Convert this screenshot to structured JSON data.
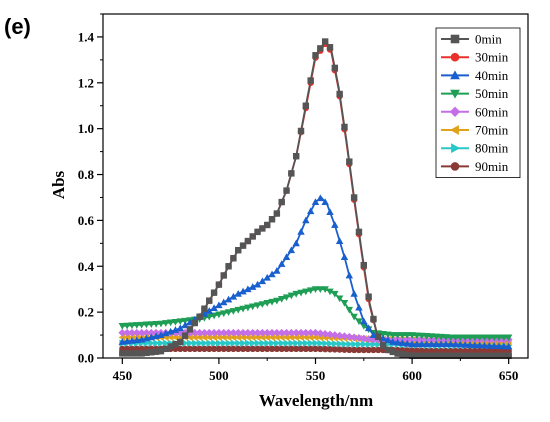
{
  "panel_label": "(e)",
  "chart_data": {
    "type": "line",
    "title": "",
    "xlabel": "Wavelength/nm",
    "ylabel": "Abs",
    "xlim": [
      440,
      660
    ],
    "ylim": [
      0,
      1.5
    ],
    "xticks": [
      450,
      500,
      550,
      600,
      650
    ],
    "yticks": [
      0.0,
      0.2,
      0.4,
      0.6,
      0.8,
      1.0,
      1.2,
      1.4
    ],
    "grid": false,
    "legend_position": "top-right",
    "series": [
      {
        "name": "0min",
        "color": "#555555",
        "marker": "square",
        "points": [
          [
            450,
            0.02
          ],
          [
            460,
            0.02
          ],
          [
            470,
            0.03
          ],
          [
            480,
            0.07
          ],
          [
            490,
            0.18
          ],
          [
            500,
            0.32
          ],
          [
            505,
            0.4
          ],
          [
            510,
            0.47
          ],
          [
            515,
            0.51
          ],
          [
            520,
            0.55
          ],
          [
            525,
            0.58
          ],
          [
            530,
            0.63
          ],
          [
            535,
            0.73
          ],
          [
            540,
            0.88
          ],
          [
            545,
            1.1
          ],
          [
            550,
            1.32
          ],
          [
            555,
            1.38
          ],
          [
            558,
            1.35
          ],
          [
            562,
            1.18
          ],
          [
            566,
            0.95
          ],
          [
            570,
            0.7
          ],
          [
            574,
            0.46
          ],
          [
            578,
            0.24
          ],
          [
            582,
            0.1
          ],
          [
            586,
            0.04
          ],
          [
            592,
            0.02
          ],
          [
            600,
            0.01
          ],
          [
            620,
            0.01
          ],
          [
            650,
            0.01
          ]
        ]
      },
      {
        "name": "30min",
        "color": "#e8312a",
        "marker": "circle",
        "points": [
          [
            450,
            0.02
          ],
          [
            460,
            0.02
          ],
          [
            470,
            0.03
          ],
          [
            480,
            0.07
          ],
          [
            490,
            0.18
          ],
          [
            500,
            0.32
          ],
          [
            505,
            0.4
          ],
          [
            510,
            0.47
          ],
          [
            515,
            0.51
          ],
          [
            520,
            0.55
          ],
          [
            525,
            0.58
          ],
          [
            530,
            0.63
          ],
          [
            535,
            0.73
          ],
          [
            540,
            0.88
          ],
          [
            545,
            1.09
          ],
          [
            550,
            1.31
          ],
          [
            555,
            1.37
          ],
          [
            558,
            1.34
          ],
          [
            562,
            1.17
          ],
          [
            566,
            0.94
          ],
          [
            570,
            0.69
          ],
          [
            574,
            0.45
          ],
          [
            578,
            0.23
          ],
          [
            582,
            0.1
          ],
          [
            586,
            0.04
          ],
          [
            592,
            0.02
          ],
          [
            600,
            0.01
          ],
          [
            620,
            0.01
          ],
          [
            650,
            0.01
          ]
        ]
      },
      {
        "name": "40min",
        "color": "#1a5fce",
        "marker": "triangle-up",
        "points": [
          [
            450,
            0.07
          ],
          [
            460,
            0.08
          ],
          [
            470,
            0.1
          ],
          [
            480,
            0.13
          ],
          [
            490,
            0.18
          ],
          [
            500,
            0.23
          ],
          [
            510,
            0.28
          ],
          [
            520,
            0.32
          ],
          [
            530,
            0.38
          ],
          [
            540,
            0.5
          ],
          [
            545,
            0.6
          ],
          [
            550,
            0.68
          ],
          [
            553,
            0.7
          ],
          [
            556,
            0.67
          ],
          [
            560,
            0.58
          ],
          [
            565,
            0.44
          ],
          [
            570,
            0.28
          ],
          [
            575,
            0.16
          ],
          [
            580,
            0.1
          ],
          [
            590,
            0.07
          ],
          [
            600,
            0.06
          ],
          [
            620,
            0.06
          ],
          [
            650,
            0.05
          ]
        ]
      },
      {
        "name": "50min",
        "color": "#1f9e55",
        "marker": "triangle-down",
        "points": [
          [
            450,
            0.14
          ],
          [
            460,
            0.145
          ],
          [
            470,
            0.15
          ],
          [
            480,
            0.16
          ],
          [
            490,
            0.17
          ],
          [
            500,
            0.19
          ],
          [
            510,
            0.21
          ],
          [
            520,
            0.23
          ],
          [
            530,
            0.25
          ],
          [
            540,
            0.28
          ],
          [
            550,
            0.3
          ],
          [
            555,
            0.3
          ],
          [
            560,
            0.28
          ],
          [
            565,
            0.24
          ],
          [
            570,
            0.18
          ],
          [
            575,
            0.14
          ],
          [
            580,
            0.11
          ],
          [
            590,
            0.1
          ],
          [
            600,
            0.1
          ],
          [
            620,
            0.09
          ],
          [
            650,
            0.09
          ]
        ]
      },
      {
        "name": "60min",
        "color": "#c46ee8",
        "marker": "diamond",
        "points": [
          [
            450,
            0.11
          ],
          [
            470,
            0.11
          ],
          [
            490,
            0.11
          ],
          [
            510,
            0.11
          ],
          [
            530,
            0.11
          ],
          [
            550,
            0.11
          ],
          [
            560,
            0.1
          ],
          [
            570,
            0.09
          ],
          [
            580,
            0.08
          ],
          [
            600,
            0.08
          ],
          [
            620,
            0.08
          ],
          [
            650,
            0.08
          ]
        ]
      },
      {
        "name": "70min",
        "color": "#e0a21b",
        "marker": "triangle-left",
        "points": [
          [
            450,
            0.09
          ],
          [
            470,
            0.09
          ],
          [
            490,
            0.09
          ],
          [
            510,
            0.09
          ],
          [
            530,
            0.09
          ],
          [
            550,
            0.09
          ],
          [
            570,
            0.085
          ],
          [
            590,
            0.08
          ],
          [
            610,
            0.075
          ],
          [
            630,
            0.07
          ],
          [
            650,
            0.07
          ]
        ]
      },
      {
        "name": "80min",
        "color": "#28c8c8",
        "marker": "triangle-right",
        "points": [
          [
            450,
            0.065
          ],
          [
            470,
            0.065
          ],
          [
            490,
            0.065
          ],
          [
            510,
            0.065
          ],
          [
            530,
            0.065
          ],
          [
            550,
            0.065
          ],
          [
            570,
            0.06
          ],
          [
            590,
            0.06
          ],
          [
            610,
            0.055
          ],
          [
            630,
            0.055
          ],
          [
            650,
            0.055
          ]
        ]
      },
      {
        "name": "90min",
        "color": "#8a3a36",
        "marker": "circle",
        "points": [
          [
            450,
            0.04
          ],
          [
            470,
            0.04
          ],
          [
            490,
            0.04
          ],
          [
            510,
            0.04
          ],
          [
            530,
            0.04
          ],
          [
            550,
            0.04
          ],
          [
            570,
            0.035
          ],
          [
            590,
            0.035
          ],
          [
            610,
            0.03
          ],
          [
            630,
            0.03
          ],
          [
            650,
            0.03
          ]
        ]
      }
    ]
  }
}
